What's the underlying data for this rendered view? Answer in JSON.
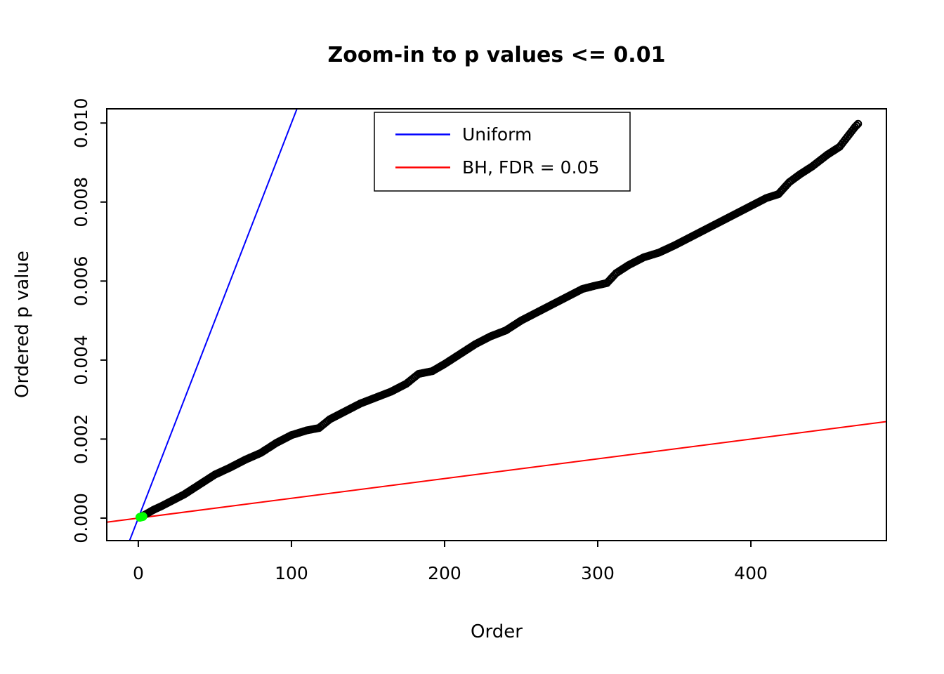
{
  "chart_data": {
    "type": "scatter",
    "title": "Zoom-in to p values <= 0.01",
    "xlabel": "Order",
    "ylabel": "Ordered p value",
    "xlim": [
      -20.6,
      488.5
    ],
    "ylim": [
      -0.00057,
      0.01036
    ],
    "x_ticks": [
      0,
      100,
      200,
      300,
      400
    ],
    "x_tick_labels": [
      "0",
      "100",
      "200",
      "300",
      "400"
    ],
    "y_ticks": [
      0.0,
      0.002,
      0.004,
      0.006,
      0.008,
      0.01
    ],
    "y_tick_labels": [
      "0.000",
      "0.002",
      "0.004",
      "0.006",
      "0.008",
      "0.010"
    ],
    "point_color": "#000000",
    "significant_color": "#00ff00",
    "series_anchors": [
      [
        1,
        2e-05
      ],
      [
        5,
        0.0001
      ],
      [
        10,
        0.00021
      ],
      [
        15,
        0.0003
      ],
      [
        20,
        0.0004
      ],
      [
        30,
        0.0006
      ],
      [
        40,
        0.00085
      ],
      [
        50,
        0.0011
      ],
      [
        60,
        0.00128
      ],
      [
        70,
        0.00148
      ],
      [
        80,
        0.00165
      ],
      [
        90,
        0.0019
      ],
      [
        100,
        0.0021
      ],
      [
        110,
        0.00222
      ],
      [
        118,
        0.00228
      ],
      [
        125,
        0.0025
      ],
      [
        135,
        0.0027
      ],
      [
        145,
        0.0029
      ],
      [
        155,
        0.00305
      ],
      [
        165,
        0.0032
      ],
      [
        175,
        0.0034
      ],
      [
        183,
        0.00365
      ],
      [
        192,
        0.00372
      ],
      [
        200,
        0.0039
      ],
      [
        210,
        0.00415
      ],
      [
        220,
        0.0044
      ],
      [
        230,
        0.0046
      ],
      [
        240,
        0.00475
      ],
      [
        250,
        0.005
      ],
      [
        260,
        0.0052
      ],
      [
        270,
        0.0054
      ],
      [
        280,
        0.0056
      ],
      [
        290,
        0.0058
      ],
      [
        298,
        0.00588
      ],
      [
        306,
        0.00595
      ],
      [
        312,
        0.0062
      ],
      [
        320,
        0.0064
      ],
      [
        330,
        0.0066
      ],
      [
        340,
        0.00672
      ],
      [
        350,
        0.0069
      ],
      [
        360,
        0.0071
      ],
      [
        370,
        0.0073
      ],
      [
        380,
        0.0075
      ],
      [
        390,
        0.0077
      ],
      [
        400,
        0.0079
      ],
      [
        410,
        0.0081
      ],
      [
        418,
        0.0082
      ],
      [
        425,
        0.0085
      ],
      [
        432,
        0.0087
      ],
      [
        440,
        0.0089
      ],
      [
        450,
        0.0092
      ],
      [
        458,
        0.0094
      ],
      [
        464,
        0.0097
      ],
      [
        468,
        0.0099
      ],
      [
        470,
        0.00998
      ]
    ],
    "significant_points": [
      [
        1,
        2e-05
      ],
      [
        2,
        3e-05
      ],
      [
        3,
        4e-05
      ]
    ],
    "lines": [
      {
        "name": "uniform-line",
        "label": "Uniform",
        "color": "#0000ff",
        "slope": 0.0001,
        "intercept": 0
      },
      {
        "name": "bh-line",
        "label": "BH, FDR = 0.05",
        "color": "#ff0000",
        "slope": 5e-06,
        "intercept": 0
      }
    ],
    "legend": {
      "position": "top-center",
      "entries": [
        {
          "label": "Uniform",
          "color": "#0000ff"
        },
        {
          "label": "BH, FDR = 0.05",
          "color": "#ff0000"
        }
      ]
    },
    "grid": false
  }
}
